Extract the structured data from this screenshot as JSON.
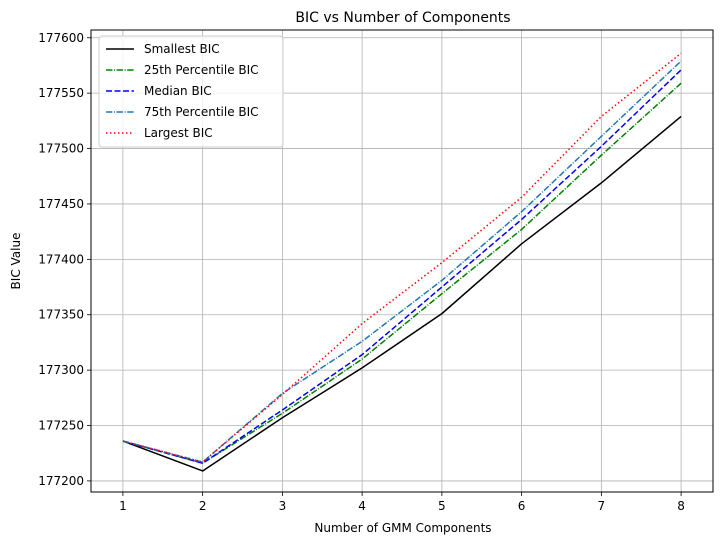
{
  "chart_data": {
    "type": "line",
    "title": "BIC vs Number of Components",
    "xlabel": "Number of GMM Components",
    "ylabel": "BIC Value",
    "x": [
      1,
      2,
      3,
      4,
      5,
      6,
      7,
      8
    ],
    "xlim": [
      0.6,
      8.4
    ],
    "ylim": [
      177190,
      177607
    ],
    "x_ticks": [
      "1",
      "2",
      "3",
      "4",
      "5",
      "6",
      "7",
      "8"
    ],
    "y_ticks": [
      "177200",
      "177250",
      "177300",
      "177350",
      "177400",
      "177450",
      "177500",
      "177550",
      "177600"
    ],
    "grid": true,
    "legend_position": "top-left",
    "series": [
      {
        "name": "Smallest BIC",
        "color": "#000000",
        "style": "solid",
        "values": [
          177236,
          177209,
          177257,
          177302,
          177351,
          177414,
          177469,
          177529
        ]
      },
      {
        "name": "25th Percentile BIC",
        "color": "#008000",
        "style": "dashdot",
        "values": [
          177236,
          177216,
          177261,
          177310,
          177369,
          177427,
          177494,
          177559
        ]
      },
      {
        "name": "Median BIC",
        "color": "#0000ff",
        "style": "dashed",
        "values": [
          177236,
          177216,
          177264,
          177314,
          177375,
          177436,
          177502,
          177571
        ]
      },
      {
        "name": "75th Percentile BIC",
        "color": "#1f77b4",
        "style": "dashdot",
        "values": [
          177236,
          177217,
          177279,
          177326,
          177381,
          177443,
          177511,
          177579
        ]
      },
      {
        "name": "Largest BIC",
        "color": "#ff0000",
        "style": "dotted",
        "values": [
          177236,
          177217,
          177278,
          177342,
          177397,
          177456,
          177529,
          177586
        ]
      }
    ]
  }
}
